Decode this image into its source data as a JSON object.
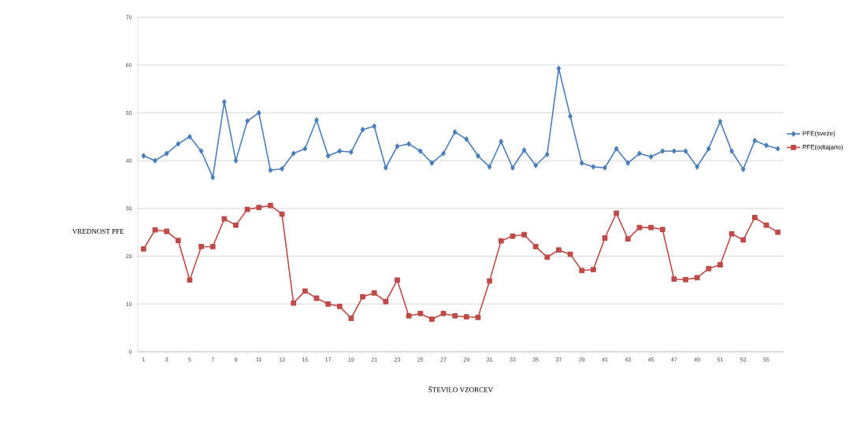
{
  "chart_data": {
    "type": "line",
    "xlabel": "ŠTEVILO VZORCEV",
    "ylabel": "VREDNOST PFE",
    "categories": [
      "1",
      null,
      "3",
      null,
      "5",
      null,
      "7",
      null,
      "9",
      null,
      "11",
      null,
      "13",
      null,
      "15",
      null,
      "17",
      null,
      "19",
      null,
      "21",
      null,
      "23",
      null,
      "25",
      null,
      "27",
      null,
      "29",
      null,
      "31",
      null,
      "33",
      null,
      "35",
      null,
      "37",
      null,
      "39",
      null,
      "41",
      null,
      "43",
      null,
      "45",
      null,
      "47",
      null,
      "49",
      null,
      "51",
      null,
      "53",
      null,
      "55",
      null
    ],
    "series": [
      {
        "name": "PFE(sveže)",
        "color": "#4a7ebb",
        "marker": "diamond",
        "values": [
          41,
          40,
          41.5,
          43.5,
          45,
          42,
          36.5,
          52.3,
          40,
          48.3,
          50,
          38,
          38.3,
          41.5,
          42.5,
          48.5,
          41,
          42,
          41.8,
          46.5,
          47.2,
          38.5,
          43,
          43.5,
          42,
          39.5,
          41.5,
          46,
          44.5,
          41,
          38.7,
          44,
          38.5,
          42.2,
          39,
          41.3,
          59.3,
          49.3,
          39.5,
          38.7,
          38.5,
          42.5,
          39.5,
          41.5,
          40.8,
          42,
          42,
          42,
          38.7,
          42.5,
          48.2,
          42,
          38.2,
          44.2,
          43.2,
          42.5
        ]
      },
      {
        "name": "PFE(odtajano)",
        "color": "#be4b48",
        "marker": "square",
        "values": [
          21.5,
          25.5,
          25.2,
          23.3,
          15,
          22,
          22,
          27.8,
          26.5,
          29.8,
          30.2,
          30.6,
          28.8,
          10.2,
          12.7,
          11.2,
          10,
          9.5,
          7,
          11.5,
          12.3,
          10.5,
          15,
          7.5,
          8,
          6.8,
          8,
          7.5,
          7.3,
          7.2,
          14.8,
          23.2,
          24.2,
          24.5,
          22,
          19.8,
          21.3,
          20.4,
          17,
          17.2,
          23.8,
          29,
          23.6,
          26,
          26,
          25.6,
          15.2,
          15.1,
          15.5,
          17.4,
          18.2,
          24.7,
          23.4,
          28.1,
          26.5,
          25
        ]
      }
    ],
    "ylim": [
      0,
      70
    ],
    "yticks": [
      0,
      10,
      20,
      30,
      40,
      50,
      60,
      70
    ],
    "grid": "y",
    "legend": "right",
    "line_style": "solid"
  }
}
